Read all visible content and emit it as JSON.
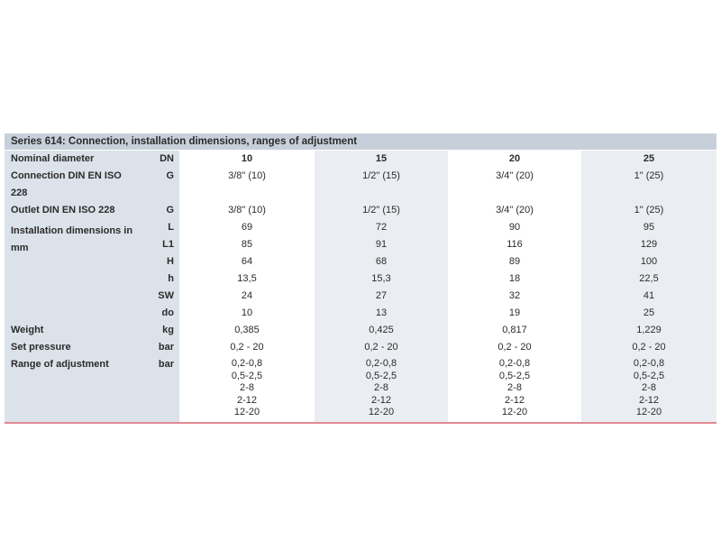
{
  "title": "Series 614: Connection, installation dimensions, ranges of adjustment",
  "header": {
    "label": "Nominal diameter",
    "unit": "DN",
    "values": [
      "10",
      "15",
      "20",
      "25"
    ]
  },
  "rows": {
    "connection": {
      "label": "Connection DIN EN ISO 228",
      "unit": "G",
      "values": [
        "3/8\" (10)",
        "1/2\" (15)",
        "3/4\" (20)",
        "1\" (25)"
      ]
    },
    "outlet": {
      "label": "Outlet DIN EN ISO 228",
      "unit": "G",
      "values": [
        "3/8\" (10)",
        "1/2\" (15)",
        "3/4\" (20)",
        "1\" (25)"
      ]
    },
    "install_label": "Installation dimensions in mm",
    "L": {
      "unit": "L",
      "values": [
        "69",
        "72",
        "90",
        "95"
      ]
    },
    "L1": {
      "unit": "L1",
      "values": [
        "85",
        "91",
        "116",
        "129"
      ]
    },
    "H": {
      "unit": "H",
      "values": [
        "64",
        "68",
        "89",
        "100"
      ]
    },
    "h": {
      "unit": "h",
      "values": [
        "13,5",
        "15,3",
        "18",
        "22,5"
      ]
    },
    "SW": {
      "unit": "SW",
      "values": [
        "24",
        "27",
        "32",
        "41"
      ]
    },
    "do": {
      "unit": "do",
      "values": [
        "10",
        "13",
        "19",
        "25"
      ]
    },
    "weight": {
      "label": "Weight",
      "unit": "kg",
      "values": [
        "0,385",
        "0,425",
        "0,817",
        "1,229"
      ]
    },
    "set_pressure": {
      "label": "Set pressure",
      "unit": "bar",
      "values": [
        "0,2 - 20",
        "0,2 - 20",
        "0,2 - 20",
        "0,2 - 20"
      ]
    },
    "range": {
      "label": "Range of adjustment",
      "unit": "bar",
      "values": [
        "0,2-0,8",
        "0,5-2,5",
        "2-8",
        "2-12",
        "12-20"
      ]
    }
  },
  "colors": {
    "title_bg": "#c7d0da",
    "label_bg": "#dbe2e9",
    "alt_col_bg": "#eaeef2",
    "bottom_rule": "#e08a94"
  }
}
